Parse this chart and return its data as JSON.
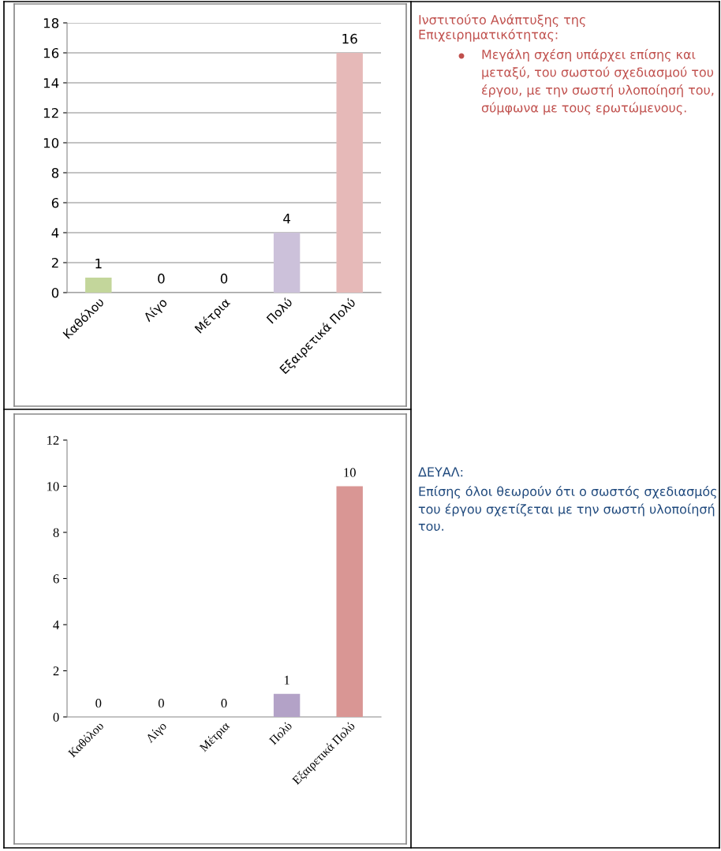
{
  "chart_data": [
    {
      "type": "bar",
      "categories": [
        "Καθόλου",
        "Λίγο",
        "Μέτρια",
        "Πολύ",
        "Εξαιρετικά Πολύ"
      ],
      "values": [
        1,
        0,
        0,
        4,
        16
      ],
      "colors": [
        "#c3d69b",
        "#95b3d7",
        "#fac090",
        "#ccc1da",
        "#e6b9b8"
      ],
      "ylim": [
        0,
        18
      ],
      "yticks": [
        0,
        2,
        4,
        6,
        8,
        10,
        12,
        14,
        16,
        18
      ],
      "grid": "y",
      "data_labels": true
    },
    {
      "type": "other",
      "title": "Ινστιτούτο Ανάπτυξης της Επιχειρηματικότητας:",
      "annotations": [
        "Μεγάλη σχέση υπάρχει επίσης και μεταξύ, του σωστού σχεδιασμού του έργου, με την σωστή υλοποίησή του, σύμφωνα με τους ερωτώμενους."
      ],
      "color": "#c0504d"
    },
    {
      "type": "bar",
      "categories": [
        "Καθόλου",
        "Λίγο",
        "Μέτρια",
        "Πολύ",
        "Εξαιρετικά Πολύ"
      ],
      "values": [
        0,
        0,
        0,
        1,
        10
      ],
      "colors": [
        "#9bbb59",
        "#4f81bd",
        "#f79646",
        "#b3a2c7",
        "#d99694"
      ],
      "ylim": [
        0,
        12
      ],
      "yticks": [
        0,
        2,
        4,
        6,
        8,
        10,
        12
      ],
      "grid": false,
      "data_labels": true
    },
    {
      "type": "other",
      "title": "ΔΕΥΑΛ:",
      "annotations": [
        "Επίσης όλοι θεωρούν ότι ο σωστός σχεδιασμός του έργου σχετίζεται με την σωστή υλοποίησή του."
      ],
      "color": "#1f497d"
    }
  ]
}
